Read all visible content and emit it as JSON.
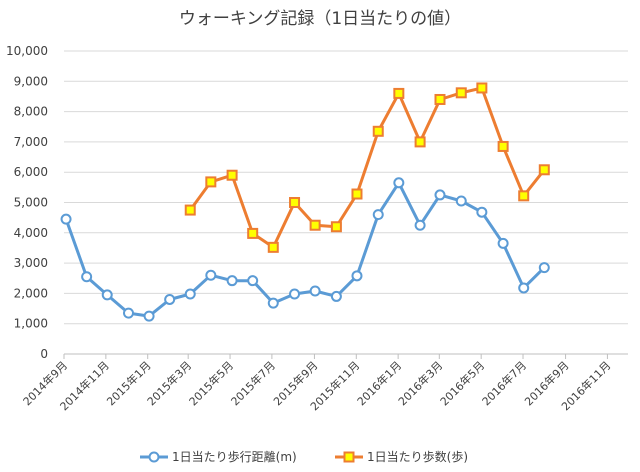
{
  "chart_data": {
    "type": "line",
    "title": "ウォーキング記録（1日当たりの値）",
    "ylim": [
      0,
      10000
    ],
    "yticks": [
      "0",
      "1,000",
      "2,000",
      "3,000",
      "4,000",
      "5,000",
      "6,000",
      "7,000",
      "8,000",
      "9,000",
      "10,000"
    ],
    "ytick_values": [
      0,
      1000,
      2000,
      3000,
      4000,
      5000,
      6000,
      7000,
      8000,
      9000,
      10000
    ],
    "xlim": [
      "2014-09-01",
      "2016-12-01"
    ],
    "xticks": [
      "2014年9月",
      "2014年11月",
      "2015年1月",
      "2015年3月",
      "2015年5月",
      "2015年7月",
      "2015年9月",
      "2015年11月",
      "2016年1月",
      "2016年3月",
      "2016年5月",
      "2016年7月",
      "2016年9月",
      "2016年11月"
    ],
    "xtick_dates": [
      "2014-09-01",
      "2014-11-01",
      "2015-01-01",
      "2015-03-01",
      "2015-05-01",
      "2015-07-01",
      "2015-09-01",
      "2015-11-01",
      "2016-01-01",
      "2016-03-01",
      "2016-05-01",
      "2016-07-01",
      "2016-09-01",
      "2016-11-01"
    ],
    "grid": true,
    "legend_position": "bottom",
    "series": [
      {
        "name": "1日当たり歩行距離(m)",
        "color": "#5B9BD5",
        "marker": "circle",
        "points": [
          {
            "x": "2014-09-04",
            "y": 4450
          },
          {
            "x": "2014-10-04",
            "y": 2550
          },
          {
            "x": "2014-11-03",
            "y": 1950
          },
          {
            "x": "2014-12-04",
            "y": 1350
          },
          {
            "x": "2015-01-03",
            "y": 1250
          },
          {
            "x": "2015-02-02",
            "y": 1800
          },
          {
            "x": "2015-03-04",
            "y": 1980
          },
          {
            "x": "2015-04-03",
            "y": 2600
          },
          {
            "x": "2015-05-04",
            "y": 2420
          },
          {
            "x": "2015-06-03",
            "y": 2420
          },
          {
            "x": "2015-07-03",
            "y": 1680
          },
          {
            "x": "2015-08-03",
            "y": 1980
          },
          {
            "x": "2015-09-02",
            "y": 2080
          },
          {
            "x": "2015-10-03",
            "y": 1900
          },
          {
            "x": "2015-11-02",
            "y": 2580
          },
          {
            "x": "2015-12-03",
            "y": 4600
          },
          {
            "x": "2016-01-02",
            "y": 5650
          },
          {
            "x": "2016-02-02",
            "y": 4250
          },
          {
            "x": "2016-03-02",
            "y": 5250
          },
          {
            "x": "2016-04-02",
            "y": 5050
          },
          {
            "x": "2016-05-02",
            "y": 4680
          },
          {
            "x": "2016-06-02",
            "y": 3650
          },
          {
            "x": "2016-07-02",
            "y": 2180
          },
          {
            "x": "2016-08-01",
            "y": 2850
          }
        ]
      },
      {
        "name": "1日当たり歩数(歩)",
        "color": "#ED7D31",
        "marker_fill": "#FFFF00",
        "marker": "square",
        "points": [
          {
            "x": "2015-03-04",
            "y": 4750
          },
          {
            "x": "2015-04-03",
            "y": 5680
          },
          {
            "x": "2015-05-04",
            "y": 5900
          },
          {
            "x": "2015-06-03",
            "y": 3980
          },
          {
            "x": "2015-07-03",
            "y": 3520
          },
          {
            "x": "2015-08-03",
            "y": 5000
          },
          {
            "x": "2015-09-02",
            "y": 4250
          },
          {
            "x": "2015-10-03",
            "y": 4200
          },
          {
            "x": "2015-11-02",
            "y": 5280
          },
          {
            "x": "2015-12-03",
            "y": 7350
          },
          {
            "x": "2016-01-02",
            "y": 8600
          },
          {
            "x": "2016-02-02",
            "y": 7000
          },
          {
            "x": "2016-03-02",
            "y": 8400
          },
          {
            "x": "2016-04-02",
            "y": 8620
          },
          {
            "x": "2016-05-02",
            "y": 8780
          },
          {
            "x": "2016-06-02",
            "y": 6850
          },
          {
            "x": "2016-07-02",
            "y": 5220
          },
          {
            "x": "2016-08-01",
            "y": 6080
          }
        ]
      }
    ]
  }
}
